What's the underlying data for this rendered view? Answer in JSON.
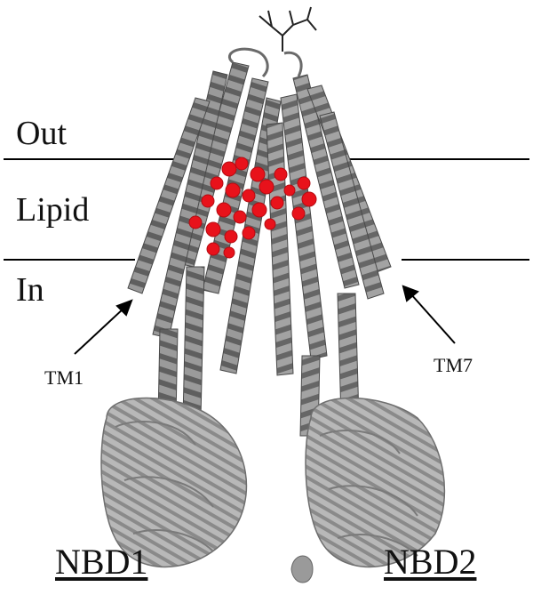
{
  "labels": {
    "out": "Out",
    "lipid": "Lipid",
    "in": "In",
    "tm1": "TM1",
    "tm7": "TM7",
    "nbd1": "NBD1",
    "nbd2": "NBD2"
  },
  "colors": {
    "helix": "#8c8c8c",
    "helix_dark": "#5e5e5e",
    "nbd": "#a9a9a9",
    "ligand": "#e8121b",
    "lines": "#000000"
  }
}
